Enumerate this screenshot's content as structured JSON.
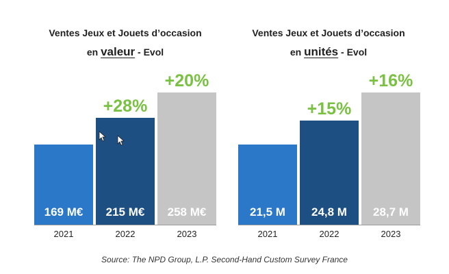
{
  "chart_data": [
    {
      "type": "bar",
      "title_line1": "Ventes Jeux et Jouets d’occasion",
      "title_prefix": "en",
      "title_emphasis": "valeur",
      "title_suffix": "- Evol",
      "categories": [
        "2021",
        "2022",
        "2023"
      ],
      "values": [
        169,
        215,
        258
      ],
      "unit": "M€",
      "value_labels": [
        "169 M€",
        "215 M€",
        "258 M€"
      ],
      "evolution_labels": [
        "",
        "+28%",
        "+20%"
      ],
      "colors": [
        "#2a78c7",
        "#1d4f83",
        "#c5c5c5"
      ],
      "ylim": [
        0,
        270
      ]
    },
    {
      "type": "bar",
      "title_line1": "Ventes Jeux et Jouets d’occasion",
      "title_prefix": "en",
      "title_emphasis": "unités",
      "title_suffix": "- Evol",
      "categories": [
        "2021",
        "2022",
        "2023"
      ],
      "values": [
        21.5,
        24.8,
        28.7
      ],
      "unit": "M",
      "value_labels": [
        "21,5 M",
        "24,8 M",
        "28,7 M"
      ],
      "evolution_labels": [
        "",
        "+15%",
        "+16%"
      ],
      "colors": [
        "#2a78c7",
        "#1d4f83",
        "#c5c5c5"
      ],
      "ylim": [
        0,
        30
      ]
    }
  ],
  "source": "Source: The NPD Group, L.P. Second-Hand Custom Survey France",
  "colors": {
    "evolution": "#7ac143",
    "label": "#ffffff"
  }
}
